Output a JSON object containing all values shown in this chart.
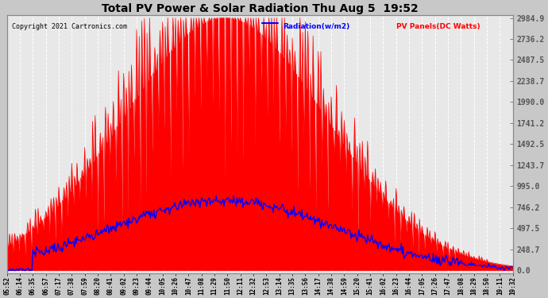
{
  "title": "Total PV Power & Solar Radiation Thu Aug 5  19:52",
  "copyright": "Copyright 2021 Cartronics.com",
  "legend_radiation": "Radiation(w/m2)",
  "legend_pv": "PV Panels(DC Watts)",
  "radiation_color": "#0000ff",
  "pv_color": "#ff0000",
  "bg_color": "#c8c8c8",
  "plot_bg": "#e8e8e8",
  "grid_color": "#aaaaaa",
  "yticks": [
    0.0,
    248.7,
    497.5,
    746.2,
    995.0,
    1243.7,
    1492.5,
    1741.2,
    1990.0,
    2238.7,
    2487.5,
    2736.2,
    2984.9
  ],
  "ymax": 2984.9,
  "ymin": 0.0,
  "time_labels": [
    "05:52",
    "06:14",
    "06:35",
    "06:57",
    "07:17",
    "07:38",
    "07:59",
    "08:20",
    "08:41",
    "09:02",
    "09:23",
    "09:44",
    "10:05",
    "10:26",
    "10:47",
    "11:08",
    "11:29",
    "11:50",
    "12:11",
    "12:32",
    "12:53",
    "13:14",
    "13:35",
    "13:56",
    "14:17",
    "14:38",
    "14:59",
    "15:20",
    "15:41",
    "16:02",
    "16:23",
    "16:44",
    "17:05",
    "17:26",
    "17:47",
    "18:08",
    "18:29",
    "18:50",
    "19:11",
    "19:32"
  ]
}
